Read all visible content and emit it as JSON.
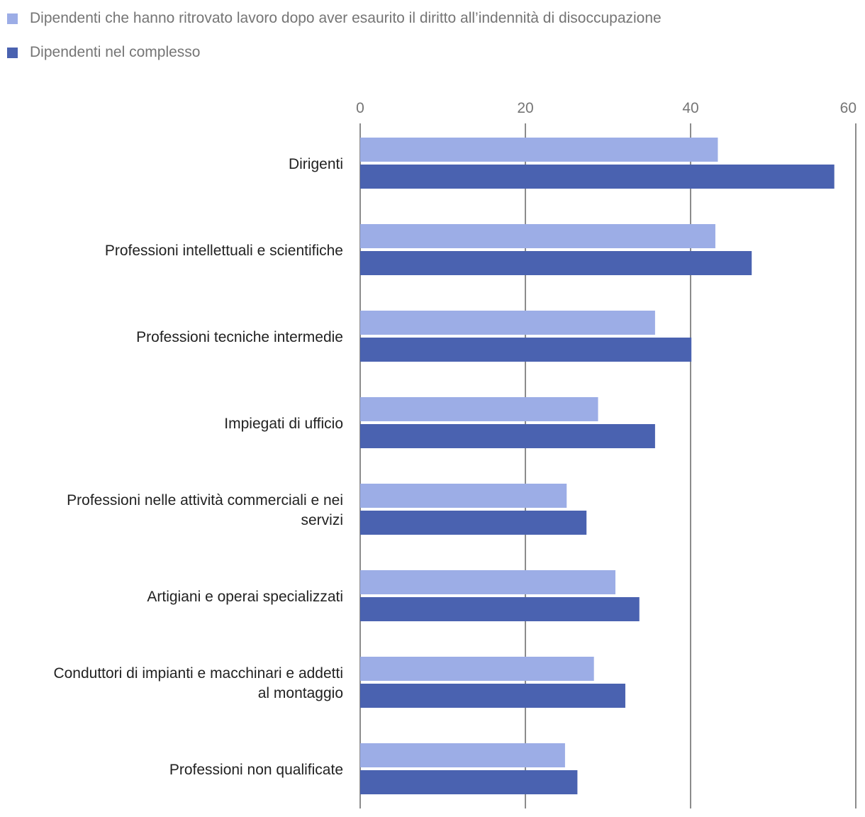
{
  "colors": {
    "series1": "#9cade6",
    "series2": "#4a62b0",
    "grid": "#8c8c8c"
  },
  "chart_data": {
    "type": "bar",
    "orientation": "horizontal",
    "title": "",
    "xlabel": "",
    "ylabel": "",
    "xlim": [
      0,
      60
    ],
    "ticks": [
      0,
      20,
      40,
      60
    ],
    "grid": true,
    "legend_position": "top-left",
    "categories": [
      [
        "Dirigenti"
      ],
      [
        "Professioni intellettuali e scientifiche"
      ],
      [
        "Professioni tecniche intermedie"
      ],
      [
        "Impiegati di ufficio"
      ],
      [
        "Professioni nelle attività commerciali e nei",
        "servizi"
      ],
      [
        "Artigiani e operai specializzati"
      ],
      [
        "Conduttori di impianti e macchinari e addetti",
        "al montaggio"
      ],
      [
        "Professioni non qualificate"
      ]
    ],
    "series": [
      {
        "name": "Dipendenti che hanno ritrovato lavoro dopo aver esaurito il diritto all’indennità di disoccupazione",
        "values": [
          43.3,
          43.0,
          35.7,
          28.8,
          25.0,
          30.9,
          28.3,
          24.8
        ]
      },
      {
        "name": "Dipendenti nel complesso",
        "values": [
          57.4,
          47.4,
          40.1,
          35.7,
          27.4,
          33.8,
          32.1,
          26.3
        ]
      }
    ]
  }
}
